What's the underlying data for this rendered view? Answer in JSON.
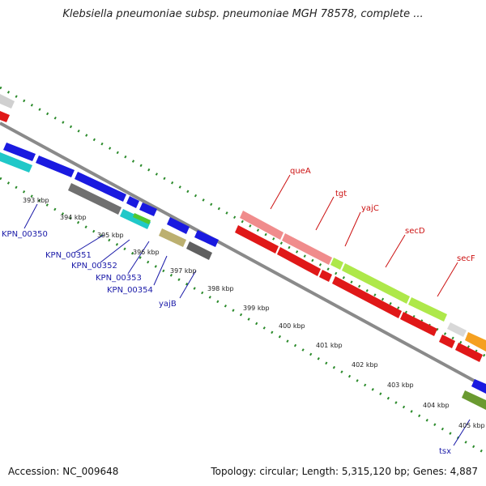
{
  "title": "Klebsiella pneumoniae subsp. pneumoniae MGH 78578, complete ...",
  "footer": {
    "accession": "Accession: NC_009648",
    "info": "Topology: circular; Length: 5,315,120 bp; Genes: 4,887"
  },
  "colors": {
    "backbone": "#8a8a8a",
    "ruler": "#2a8a2a",
    "gene_label_blue": "#1a1aa8",
    "gene_label_red": "#cc1111",
    "kbp_text": "#222222"
  },
  "kbp_labels": [
    "393 kbp",
    "394 kbp",
    "395 kbp",
    "396 kbp",
    "397 kbp",
    "398 kbp",
    "399 kbp",
    "400 kbp",
    "401 kbp",
    "402 kbp",
    "403 kbp",
    "404 kbp",
    "405 kbp"
  ],
  "gene_labels_blue": [
    "KPN_00350",
    "KPN_00351",
    "KPN_00352",
    "KPN_00353",
    "KPN_00354",
    "yajB",
    "tsx"
  ],
  "gene_labels_red": [
    "queA",
    "tgt",
    "yajC",
    "secD",
    "secF"
  ]
}
